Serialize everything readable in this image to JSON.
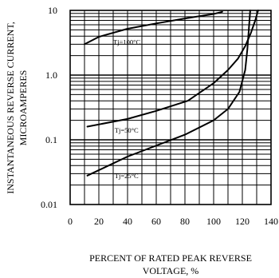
{
  "chart_data": {
    "type": "line",
    "title": "",
    "xlabel_lines": [
      "PERCENT OF RATED PEAK REVERSE",
      "VOLTAGE, %"
    ],
    "ylabel_lines": [
      "INSTANTANEOUS REVERSE CURRENT,",
      "MICROAMPERES"
    ],
    "xlim": [
      0,
      140
    ],
    "ylim": [
      0.01,
      10
    ],
    "yscale": "log",
    "x_ticks": [
      0,
      20,
      40,
      60,
      80,
      100,
      120,
      140
    ],
    "x_tick_labels": [
      "0",
      "20",
      "40",
      "60",
      "80",
      "100",
      "120",
      "140"
    ],
    "y_ticks": [
      0.01,
      0.1,
      1.0,
      10
    ],
    "y_tick_labels": [
      "0.01",
      "0.1",
      "1.0",
      "10"
    ],
    "grid": true,
    "legend": "none",
    "series": [
      {
        "name": "Tj=100°C",
        "x": [
          10,
          20,
          40,
          60,
          80,
          100,
          106
        ],
        "y": [
          3.0,
          3.9,
          5.2,
          6.3,
          7.5,
          8.8,
          9.5
        ]
      },
      {
        "name": "Tj=50°C",
        "x": [
          12,
          40,
          60,
          82,
          100,
          110,
          117,
          122,
          126,
          129,
          131
        ],
        "y": [
          0.16,
          0.21,
          0.28,
          0.4,
          0.75,
          1.2,
          1.8,
          2.8,
          4.5,
          7.0,
          10.0
        ]
      },
      {
        "name": "Tj=25°C",
        "x": [
          12,
          40,
          80,
          100,
          110,
          118,
          122,
          123.5,
          124.5,
          125.5
        ],
        "y": [
          0.028,
          0.055,
          0.12,
          0.2,
          0.3,
          0.55,
          1.2,
          2.5,
          5.0,
          10.0
        ]
      }
    ],
    "curve_labels": [
      {
        "series": "Tj=100°C",
        "text": "Tj=100°C",
        "x": 30,
        "y": 3.0
      },
      {
        "series": "Tj=50°C",
        "text": "Tj=50°C",
        "x": 31,
        "y": 0.13
      },
      {
        "series": "Tj=25°C",
        "text": "Tj=25°C",
        "x": 31,
        "y": 0.0255
      }
    ]
  }
}
